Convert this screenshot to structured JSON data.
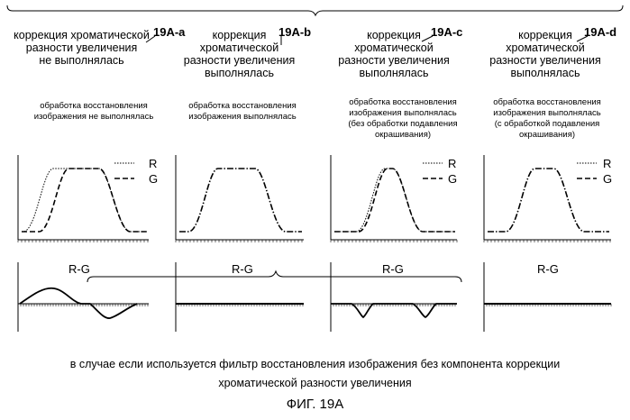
{
  "columns": [
    {
      "id": "a",
      "tag": "19A-a",
      "header": "коррекция хроматической\nразности увеличения\nне выполнялась",
      "note": "обработка восстановления\nизображения не выполнялась",
      "legend_r": "R",
      "legend_g": "G",
      "diff_label": "R-G",
      "has_legend": true
    },
    {
      "id": "b",
      "tag": "19A-b",
      "header": "коррекция\nхроматической\nразности увеличения\nвыполнялась",
      "note": "обработка восстановления\nизображения выполнялась",
      "diff_label": "R-G",
      "has_legend": false
    },
    {
      "id": "c",
      "tag": "19A-c",
      "header": "коррекция\nхроматической\nразности увеличения\nвыполнялась",
      "note": "обработка восстановления\nизображения выполнялась\n(без обработки подавления\nокрашивания)",
      "legend_r": "R",
      "legend_g": "G",
      "diff_label": "R-G",
      "has_legend": true
    },
    {
      "id": "d",
      "tag": "19A-d",
      "header": "коррекция\nхроматической\nразности увеличения\nвыполнялась",
      "note": "обработка восстановления\nизображения выполнялась\n(с обработкой подавления\nокрашивания)",
      "legend_r": "R",
      "legend_g": "G",
      "diff_label": "R-G",
      "has_legend": true
    }
  ],
  "caption_line1": "в случае если используется фильтр восстановления изображения без компонента коррекции",
  "caption_line2": "хроматической разности увеличения",
  "figure_label": "ФИГ. 19A"
}
